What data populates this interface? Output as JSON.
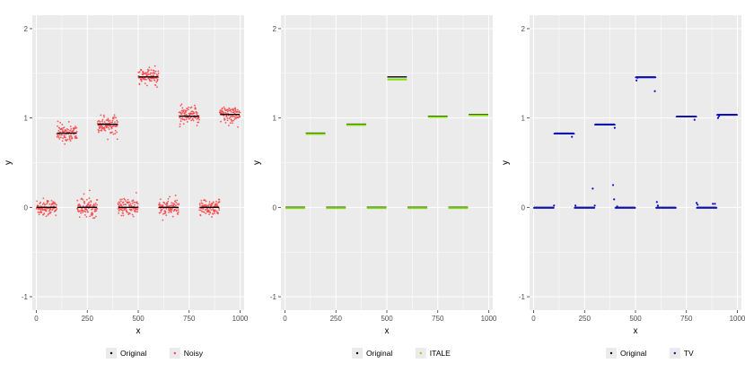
{
  "colors": {
    "panel_bg": "#EBEBEB",
    "grid_major": "#FFFFFF",
    "original": "#000000",
    "noisy": "#F8474A",
    "itale": "#7FE000",
    "tv": "#1010C8"
  },
  "chart_data": [
    {
      "type": "scatter",
      "xlabel": "x",
      "ylabel": "y",
      "xlim": [
        -20,
        1020
      ],
      "ylim": [
        -1.15,
        2.15
      ],
      "xticks": [
        0,
        250,
        500,
        750,
        1000
      ],
      "yticks": [
        -1,
        0,
        1,
        2
      ],
      "grid": true,
      "legend_position": "bottom",
      "segments": [
        {
          "x": [
            0,
            100
          ],
          "y": 0
        },
        {
          "x": [
            100,
            200
          ],
          "y": 0.83
        },
        {
          "x": [
            200,
            300
          ],
          "y": 0
        },
        {
          "x": [
            300,
            400
          ],
          "y": 0.93
        },
        {
          "x": [
            400,
            500
          ],
          "y": 0
        },
        {
          "x": [
            500,
            600
          ],
          "y": 1.46
        },
        {
          "x": [
            600,
            700
          ],
          "y": 0
        },
        {
          "x": [
            700,
            800
          ],
          "y": 1.02
        },
        {
          "x": [
            800,
            900
          ],
          "y": 0
        },
        {
          "x": [
            900,
            1000
          ],
          "y": 1.04
        }
      ],
      "series": [
        {
          "name": "Original",
          "color": "#000000",
          "style": "line"
        },
        {
          "name": "Noisy",
          "color": "#F8474A",
          "style": "points",
          "noise_sd": 0.05,
          "n_points": 1000
        }
      ]
    },
    {
      "type": "scatter",
      "xlabel": "x",
      "ylabel": "y",
      "xlim": [
        -20,
        1020
      ],
      "ylim": [
        -1.15,
        2.15
      ],
      "xticks": [
        0,
        250,
        500,
        750,
        1000
      ],
      "yticks": [
        -1,
        0,
        1,
        2
      ],
      "grid": true,
      "legend_position": "bottom",
      "segments": [
        {
          "x": [
            0,
            100
          ],
          "y": 0
        },
        {
          "x": [
            100,
            200
          ],
          "y": 0.83
        },
        {
          "x": [
            200,
            300
          ],
          "y": 0
        },
        {
          "x": [
            300,
            400
          ],
          "y": 0.93
        },
        {
          "x": [
            400,
            500
          ],
          "y": 0
        },
        {
          "x": [
            500,
            600
          ],
          "y": 1.46
        },
        {
          "x": [
            600,
            700
          ],
          "y": 0
        },
        {
          "x": [
            700,
            800
          ],
          "y": 1.02
        },
        {
          "x": [
            800,
            900
          ],
          "y": 0
        },
        {
          "x": [
            900,
            1000
          ],
          "y": 1.04
        }
      ],
      "series": [
        {
          "name": "Original",
          "color": "#000000",
          "style": "line"
        },
        {
          "name": "ITALE",
          "color": "#7FE000",
          "style": "line",
          "segments": [
            {
              "x": [
                0,
                100
              ],
              "y": 0
            },
            {
              "x": [
                100,
                200
              ],
              "y": 0.83
            },
            {
              "x": [
                200,
                300
              ],
              "y": 0
            },
            {
              "x": [
                300,
                400
              ],
              "y": 0.93
            },
            {
              "x": [
                400,
                500
              ],
              "y": 0
            },
            {
              "x": [
                500,
                600
              ],
              "y": 1.44
            },
            {
              "x": [
                600,
                700
              ],
              "y": 0
            },
            {
              "x": [
                700,
                800
              ],
              "y": 1.02
            },
            {
              "x": [
                800,
                900
              ],
              "y": 0
            },
            {
              "x": [
                900,
                1000
              ],
              "y": 1.04
            }
          ]
        }
      ]
    },
    {
      "type": "scatter",
      "xlabel": "x",
      "ylabel": "y",
      "xlim": [
        -20,
        1020
      ],
      "ylim": [
        -1.15,
        2.15
      ],
      "xticks": [
        0,
        250,
        500,
        750,
        1000
      ],
      "yticks": [
        -1,
        0,
        1,
        2
      ],
      "grid": true,
      "legend_position": "bottom",
      "segments": [
        {
          "x": [
            0,
            100
          ],
          "y": 0
        },
        {
          "x": [
            100,
            200
          ],
          "y": 0.83
        },
        {
          "x": [
            200,
            300
          ],
          "y": 0
        },
        {
          "x": [
            300,
            400
          ],
          "y": 0.93
        },
        {
          "x": [
            400,
            500
          ],
          "y": 0
        },
        {
          "x": [
            500,
            600
          ],
          "y": 1.46
        },
        {
          "x": [
            600,
            700
          ],
          "y": 0
        },
        {
          "x": [
            700,
            800
          ],
          "y": 1.02
        },
        {
          "x": [
            800,
            900
          ],
          "y": 0
        },
        {
          "x": [
            900,
            1000
          ],
          "y": 1.04
        }
      ],
      "series": [
        {
          "name": "Original",
          "color": "#000000",
          "style": "line"
        },
        {
          "name": "TV",
          "color": "#1010C8",
          "style": "points",
          "outliers": [
            {
              "x": 100,
              "y": 0.02
            },
            {
              "x": 188,
              "y": 0.79
            },
            {
              "x": 205,
              "y": 0.02
            },
            {
              "x": 290,
              "y": 0.21
            },
            {
              "x": 300,
              "y": 0.02
            },
            {
              "x": 390,
              "y": 0.25
            },
            {
              "x": 395,
              "y": 0.09
            },
            {
              "x": 398,
              "y": 0.89
            },
            {
              "x": 410,
              "y": 0.01
            },
            {
              "x": 505,
              "y": 1.42
            },
            {
              "x": 510,
              "y": 1.45
            },
            {
              "x": 595,
              "y": 1.3
            },
            {
              "x": 605,
              "y": 0.06
            },
            {
              "x": 610,
              "y": 0.02
            },
            {
              "x": 790,
              "y": 0.98
            },
            {
              "x": 800,
              "y": 0.05
            },
            {
              "x": 805,
              "y": 0.03
            },
            {
              "x": 880,
              "y": 0.04
            },
            {
              "x": 890,
              "y": 0.04
            },
            {
              "x": 905,
              "y": 1.0
            },
            {
              "x": 910,
              "y": 1.02
            }
          ]
        }
      ]
    }
  ]
}
